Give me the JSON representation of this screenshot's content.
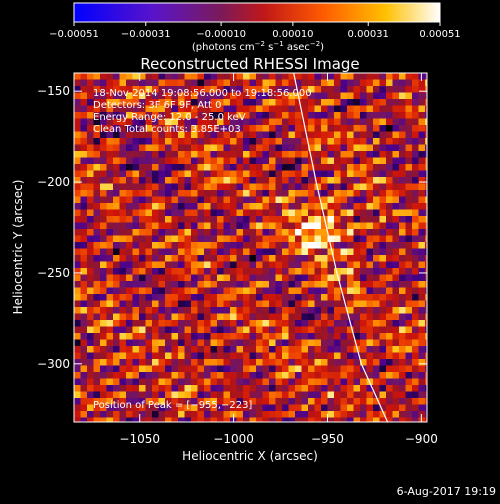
{
  "chart_data": {
    "type": "heatmap",
    "title": "Reconstructed RHESSI Image",
    "xlabel": "Heliocentric X (arcsec)",
    "ylabel": "Heliocentric Y (arcsec)",
    "xlim": [
      -1085,
      -897
    ],
    "ylim": [
      -332,
      -140
    ],
    "x_ticks": [
      -1050,
      -1000,
      -950,
      -900
    ],
    "x_tick_labels": [
      "−1050",
      "−1000",
      "−950",
      "−900"
    ],
    "y_ticks": [
      -150,
      -200,
      -250,
      -300
    ],
    "y_tick_labels": [
      "−150",
      "−200",
      "−250",
      "−300"
    ],
    "annotations": {
      "time_range": "18-Nov-2014 19:08:56.000 to 19:18:56.000",
      "detectors": "Detectors: 3F 6F 9F, Att 0",
      "energy_range": "Energy Range: 12.0 - 25.0 keV",
      "counts": "Clean     Total counts: 3.85E+03",
      "peak": "Position of Peak = [−955,−223]"
    },
    "peak_position": [
      -955,
      -223
    ],
    "colorbar": {
      "min": -0.00051,
      "max": 0.00051,
      "tick_values": [
        -0.00051,
        -0.00031,
        -0.0001,
        0.0001,
        0.00031,
        0.00051
      ],
      "tick_labels": [
        "−0.00051",
        "−0.00031",
        "−0.00010",
        "0.00010",
        "0.00031",
        "0.00051"
      ],
      "label": "(photons cm",
      "label_exp1": "−2",
      "label_mid": " s",
      "label_exp2": "−1",
      "label_mid2": " asec",
      "label_exp3": "−2",
      "label_end": ")"
    },
    "limb_curve": [
      [
        -968,
        -140
      ],
      [
        -956,
        -200
      ],
      [
        -945,
        -250
      ],
      [
        -932,
        -300
      ],
      [
        -918,
        -332
      ]
    ]
  },
  "footer": {
    "date": "6-Aug-2017 19:19"
  }
}
